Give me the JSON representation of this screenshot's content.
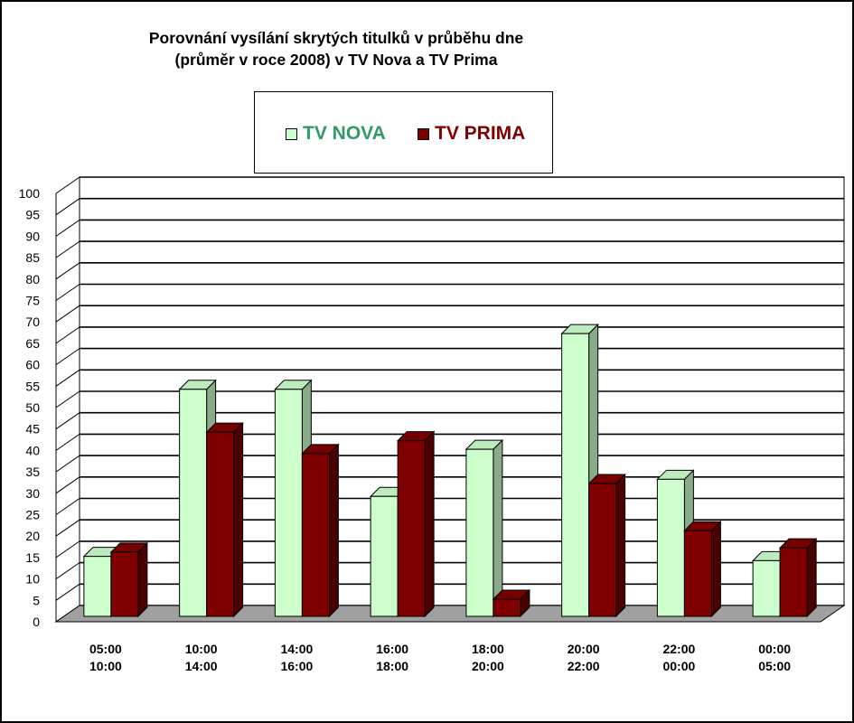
{
  "chart_data": {
    "type": "bar",
    "title": [
      "Porovnání vysílání skrytých titulků v průběhu dne",
      "(průměr v roce 2008) v TV Nova a TV Prima"
    ],
    "categories": [
      [
        "05:00",
        "10:00"
      ],
      [
        "10:00",
        "14:00"
      ],
      [
        "14:00",
        "16:00"
      ],
      [
        "16:00",
        "18:00"
      ],
      [
        "18:00",
        "20:00"
      ],
      [
        "20:00",
        "22:00"
      ],
      [
        "22:00",
        "00:00"
      ],
      [
        "00:00",
        "05:00"
      ]
    ],
    "series": [
      {
        "name": "TV NOVA",
        "values": [
          14,
          53,
          53,
          28,
          39,
          66,
          32,
          13
        ],
        "color": "#ccffcc",
        "side_color": "#8aab8a",
        "label_color": "#339966"
      },
      {
        "name": "TV PRIMA",
        "values": [
          15,
          43,
          38,
          41,
          4,
          31,
          20,
          16
        ],
        "color": "#800000",
        "side_color": "#4a0000",
        "label_color": "#800000"
      }
    ],
    "yticks": [
      0,
      5,
      10,
      15,
      20,
      25,
      30,
      35,
      40,
      45,
      50,
      55,
      60,
      65,
      70,
      75,
      80,
      85,
      90,
      95,
      100
    ],
    "ylim": [
      0,
      100
    ],
    "grid": true,
    "legend_position": "top",
    "floor_color": "#a0a0a0"
  }
}
